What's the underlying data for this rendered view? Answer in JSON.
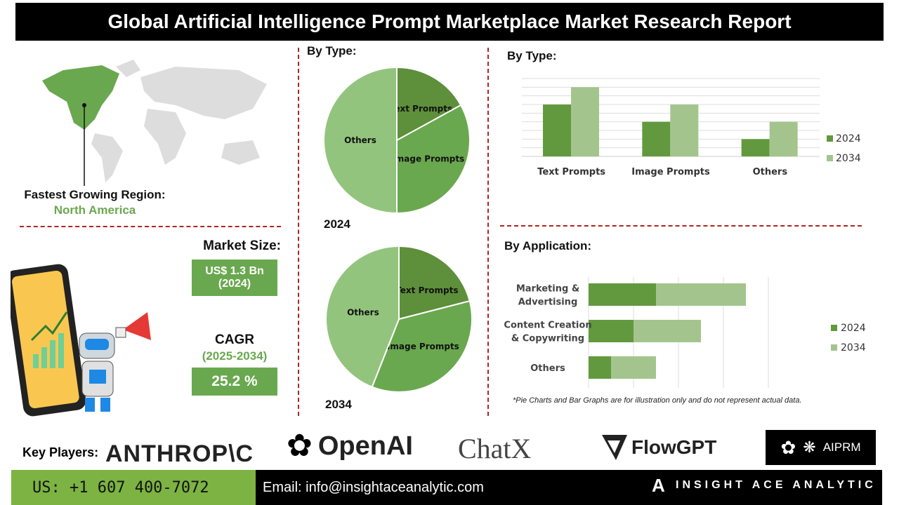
{
  "title": "Global Artificial Intelligence Prompt Marketplace Market Research Report",
  "region": {
    "label": "Fastest Growing Region:",
    "value": "North America"
  },
  "market_size": {
    "label": "Market Size:",
    "value": "US$ 1.3 Bn",
    "year": "(2024)"
  },
  "cagr": {
    "label": "CAGR",
    "period": "(2025-2034)",
    "value": "25.2 %"
  },
  "colors": {
    "dark_green": "#62993e",
    "light_green": "#a3c58d",
    "pie_dark": "#5e8f3a",
    "pie_mid": "#6aa84f",
    "pie_light": "#93c47d",
    "accent_red": "#b22222"
  },
  "chart_data": [
    {
      "type": "pie",
      "title": "By Type:",
      "caption": "2024",
      "slices": [
        {
          "label": "Text Prompts",
          "value": 17
        },
        {
          "label": "Image Prompts",
          "value": 33
        },
        {
          "label": "Others",
          "value": 50
        }
      ]
    },
    {
      "type": "pie",
      "caption": "2034",
      "slices": [
        {
          "label": "Text Prompts",
          "value": 21
        },
        {
          "label": "Image Prompts",
          "value": 35
        },
        {
          "label": "Others",
          "value": 44
        }
      ]
    },
    {
      "type": "bar",
      "title": "By Type:",
      "categories": [
        "Text Prompts",
        "Image Prompts",
        "Others"
      ],
      "series": [
        {
          "name": "2024",
          "values": [
            6,
            4,
            2
          ]
        },
        {
          "name": "2034",
          "values": [
            8,
            6,
            4
          ]
        }
      ],
      "ylim": [
        0,
        9
      ],
      "grid": true,
      "legend": "right"
    },
    {
      "type": "bar",
      "orientation": "horizontal",
      "stacked": true,
      "title": "By Application:",
      "categories": [
        "Marketing & Advertising",
        "Content Creation & Copywriting",
        "Others"
      ],
      "series": [
        {
          "name": "2024",
          "values": [
            1.5,
            1,
            0.5
          ]
        },
        {
          "name": "2034",
          "values": [
            2,
            1.5,
            1
          ]
        }
      ],
      "xlim": [
        0,
        4
      ],
      "grid": true,
      "legend": "right"
    }
  ],
  "note": "*Pie Charts and Bar Graphs are for illustration only and do not represent actual data.",
  "key_players": {
    "label": "Key Players:",
    "logos": [
      "ANTHROP\\C",
      "OpenAI",
      "ChatX",
      "FlowGPT",
      "AIPRM"
    ]
  },
  "footer": {
    "phone": "US: +1 607 400-7072",
    "email": "Email: info@insightaceanalytic.com",
    "brand": "INSIGHT ACE ANALYTIC"
  }
}
